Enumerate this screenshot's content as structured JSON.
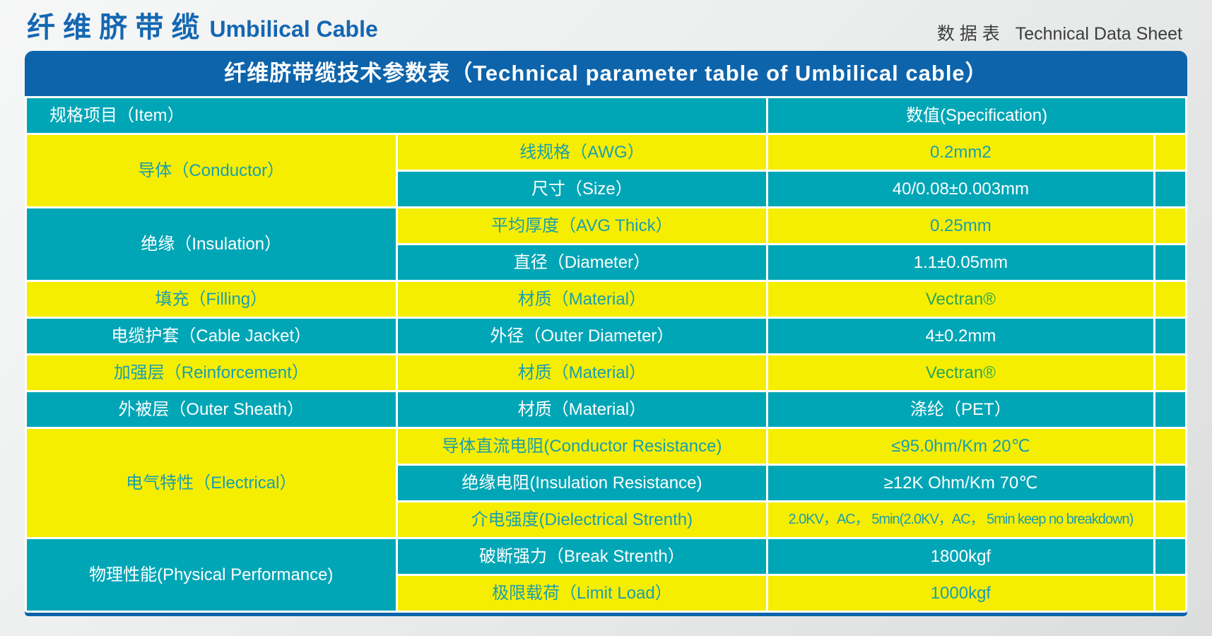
{
  "page": {
    "title_zh": "纤 维 脐 带 缆",
    "title_en": "Umbilical Cable",
    "sheet_label_zh": "数 据 表",
    "sheet_label_en": "Technical Data Sheet"
  },
  "table": {
    "title": "纤维脐带缆技术参数表（Technical parameter table of Umbilical cable）",
    "header": {
      "item_label": "规格项目（Item）",
      "spec_label": "数值(Specification)"
    },
    "rows": [
      {
        "cells": [
          {
            "text": "导体（Conductor）",
            "tone": "yellow",
            "rowspan": 2
          },
          {
            "text": "线规格（AWG）",
            "tone": "yellow"
          },
          {
            "text": "0.2mm2",
            "tone": "yellow"
          }
        ]
      },
      {
        "cells": [
          {
            "text": "尺寸（Size）",
            "tone": "teal"
          },
          {
            "text": "40/0.08±0.003mm",
            "tone": "teal"
          }
        ]
      },
      {
        "cells": [
          {
            "text": "绝缘（Insulation）",
            "tone": "teal",
            "rowspan": 2
          },
          {
            "text": "平均厚度（AVG Thick）",
            "tone": "yellow"
          },
          {
            "text": "0.25mm",
            "tone": "yellow"
          }
        ]
      },
      {
        "cells": [
          {
            "text": "直径（Diameter）",
            "tone": "teal"
          },
          {
            "text": "1.1±0.05mm",
            "tone": "teal"
          }
        ]
      },
      {
        "cells": [
          {
            "text": "填充（Filling）",
            "tone": "yellow"
          },
          {
            "text": "材质（Material）",
            "tone": "yellow"
          },
          {
            "text": "Vectran®",
            "tone": "yellow",
            "color": "green"
          }
        ]
      },
      {
        "cells": [
          {
            "text": "电缆护套（Cable  Jacket）",
            "tone": "teal"
          },
          {
            "text": "外径（Outer Diameter）",
            "tone": "teal"
          },
          {
            "text": "4±0.2mm",
            "tone": "teal"
          }
        ]
      },
      {
        "cells": [
          {
            "text": "加强层（Reinforcement）",
            "tone": "yellow"
          },
          {
            "text": "材质（Material）",
            "tone": "yellow"
          },
          {
            "text": "Vectran®",
            "tone": "yellow",
            "color": "green"
          }
        ]
      },
      {
        "cells": [
          {
            "text": "外被层（Outer Sheath）",
            "tone": "teal"
          },
          {
            "text": "材质（Material）",
            "tone": "teal"
          },
          {
            "text": "涤纶（PET）",
            "tone": "teal"
          }
        ]
      },
      {
        "cells": [
          {
            "text": "电气特性（Electrical）",
            "tone": "yellow",
            "rowspan": 3
          },
          {
            "text": "导体直流电阻(Conductor Resistance)",
            "tone": "yellow"
          },
          {
            "text": "≤95.0hm/Km 20℃",
            "tone": "yellow"
          }
        ]
      },
      {
        "cells": [
          {
            "text": "绝缘电阻(Insulation Resistance)",
            "tone": "teal"
          },
          {
            "text": "≥12K Ohm/Km 70℃",
            "tone": "teal"
          }
        ]
      },
      {
        "cells": [
          {
            "text": "介电强度(Dielectrical Strenth)",
            "tone": "yellow"
          },
          {
            "text": "2.0KV，AC， 5min(2.0KV，AC， 5min keep no breakdown)",
            "tone": "yellow",
            "condensed": true
          }
        ]
      },
      {
        "cells": [
          {
            "text": "物理性能(Physical Performance)",
            "tone": "teal",
            "rowspan": 2
          },
          {
            "text": "破断强力（Break Strenth）",
            "tone": "teal"
          },
          {
            "text": "1800kgf",
            "tone": "teal"
          }
        ]
      },
      {
        "cells": [
          {
            "text": "极限载荷（Limit Load）",
            "tone": "yellow"
          },
          {
            "text": "1000kgf",
            "tone": "yellow"
          }
        ]
      }
    ]
  },
  "colors": {
    "brand_blue": "#1467b2",
    "panel_blue": "#0d64ab",
    "teal_cell": "#00a6b6",
    "yellow_cell": "#f6ee00",
    "teal_text_on_yellow": "#1a9fae",
    "vectran_green": "#2aa653",
    "sheet_label_gray": "#3d3d3d"
  }
}
